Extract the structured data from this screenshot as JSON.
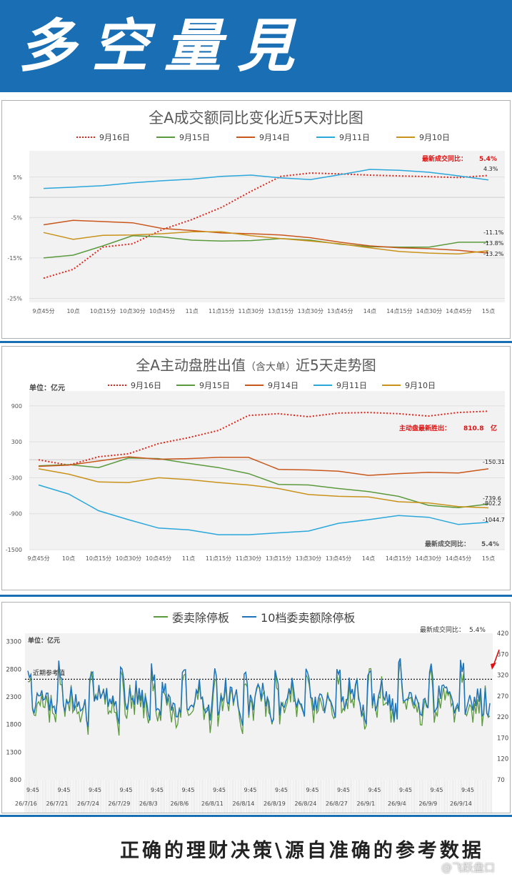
{
  "banner": {
    "title": "多空量見"
  },
  "footer": {
    "slogan": "正确的理财决策\\源自准确的参考数据",
    "watermark": "@飞跃盘口"
  },
  "colors": {
    "c916": "#e0261b",
    "c915": "#5b9a3c",
    "c914": "#c9561b",
    "c911": "#2aa7db",
    "c910": "#c9921b",
    "banner": "#1a6fb4"
  },
  "chart_data": [
    {
      "type": "line",
      "title": "全A成交额同比变化近5天对比图",
      "categories": [
        "9点45分",
        "10点",
        "10点15分",
        "10点30分",
        "10点45分",
        "11点",
        "11点15分",
        "11点30分",
        "13点15分",
        "13点30分",
        "13点45分",
        "14点",
        "14点15分",
        "14点30分",
        "14点45分",
        "15点"
      ],
      "yticks": [
        "5%",
        "-5%",
        "-15%",
        "-25%"
      ],
      "ylim": [
        -25,
        10
      ],
      "series": [
        {
          "name": "9月16日",
          "style": "dotted",
          "color": "#e0261b",
          "values": [
            -20,
            -17.8,
            -12.3,
            -11.5,
            -8,
            -5.5,
            -2.5,
            1.5,
            5.2,
            6,
            5.8,
            5.5,
            5.3,
            5.1,
            4.9,
            5.4
          ]
        },
        {
          "name": "9月15日",
          "color": "#5b9a3c",
          "values": [
            -15,
            -14.3,
            -12,
            -9.5,
            -9.8,
            -10.6,
            -10.8,
            -10.7,
            -10.2,
            -10.6,
            -11.6,
            -12.2,
            -12.3,
            -12.3,
            -11.1,
            -11.1
          ]
        },
        {
          "name": "9月14日",
          "color": "#c9561b",
          "values": [
            -6.8,
            -5.7,
            -6,
            -6.3,
            -7.7,
            -8.2,
            -8.8,
            -9,
            -9.3,
            -10,
            -11.1,
            -12,
            -12.5,
            -12.7,
            -13.1,
            -13.8
          ]
        },
        {
          "name": "9月11日",
          "color": "#2aa7db",
          "values": [
            2.2,
            2.5,
            2.9,
            3.6,
            4.1,
            4.5,
            5.2,
            5.5,
            4.8,
            4.4,
            5.6,
            6.9,
            6.7,
            6.2,
            5.3,
            4.3
          ]
        },
        {
          "name": "9月10日",
          "color": "#c9921b",
          "values": [
            -8.7,
            -10.4,
            -9.4,
            -9.3,
            -9,
            -8.5,
            -8.5,
            -9.5,
            -10.2,
            -10.8,
            -11.5,
            -12.5,
            -13.4,
            -13.8,
            -14,
            -13.2
          ]
        }
      ],
      "end_labels": [
        "4.3%",
        "-11.1%",
        "-13.8%",
        "-13.2%"
      ],
      "annotation": {
        "label": "最新成交同比：",
        "value": "5.4%"
      }
    },
    {
      "type": "line",
      "title": "全A主动盘胜出值",
      "title_note": "（含大单）",
      "title_tail": "近5天走势图",
      "unit": "单位：亿元",
      "categories": [
        "9点45分",
        "10点",
        "10点15分",
        "10点30分",
        "10点45分",
        "11点",
        "11点15分",
        "11点30分",
        "13点15分",
        "13点30分",
        "13点45分",
        "14点",
        "14点15分",
        "14点30分",
        "14点45分",
        "15点"
      ],
      "yticks": [
        "900",
        "300",
        "-300",
        "-900",
        "-1500"
      ],
      "ylim": [
        -1500,
        1000
      ],
      "series": [
        {
          "name": "9月16日",
          "style": "dotted",
          "color": "#e0261b",
          "values": [
            0,
            -90,
            50,
            100,
            270,
            370,
            490,
            740,
            770,
            720,
            780,
            790,
            770,
            730,
            790,
            811
          ]
        },
        {
          "name": "9月15日",
          "color": "#5b9a3c",
          "values": [
            -100,
            -80,
            -130,
            30,
            20,
            -60,
            -130,
            -230,
            -410,
            -420,
            -480,
            -530,
            -610,
            -760,
            -800,
            -739.6
          ]
        },
        {
          "name": "9月14日",
          "color": "#c9561b",
          "values": [
            -110,
            -90,
            -20,
            50,
            10,
            20,
            40,
            40,
            -160,
            -170,
            -190,
            -260,
            -230,
            -210,
            -220,
            -150.31
          ]
        },
        {
          "name": "9月11日",
          "color": "#2aa7db",
          "values": [
            -420,
            -570,
            -850,
            -1000,
            -1140,
            -1170,
            -1250,
            -1250,
            -1220,
            -1190,
            -1060,
            -1000,
            -930,
            -960,
            -1080,
            -1044.7
          ]
        },
        {
          "name": "9月10日",
          "color": "#c9921b",
          "values": [
            -150,
            -240,
            -370,
            -380,
            -300,
            -330,
            -380,
            -420,
            -480,
            -580,
            -610,
            -620,
            -700,
            -720,
            -780,
            -802.2
          ]
        }
      ],
      "end_labels": [
        "-150.31",
        "-739.6",
        "-802.2",
        "-1044.7"
      ],
      "annotation": {
        "label": "主动盘最新胜出：",
        "value": "810.8",
        "unit": "亿"
      },
      "footnote": {
        "label": "最新成交同比：",
        "value": "5.4%"
      }
    },
    {
      "type": "line",
      "unit": "单位：亿元",
      "yticks_left": [
        "3300",
        "2800",
        "2300",
        "1800",
        "1300",
        "800"
      ],
      "yticks_right": [
        "420",
        "370",
        "320",
        "270",
        "220",
        "170",
        "120",
        "70"
      ],
      "ylim_left": [
        800,
        3400
      ],
      "ylim_right": [
        70,
        420
      ],
      "reference_line": {
        "label": "近期参考值",
        "value": 2620
      },
      "top_note": {
        "label": "最新成交同比：",
        "value": "5.4%"
      },
      "time_label": "9:45",
      "dates": [
        "26/7/16",
        "26/7/21",
        "26/7/24",
        "26/7/29",
        "26/8/3",
        "26/8/6",
        "26/8/11",
        "26/8/14",
        "26/8/19",
        "26/8/24",
        "26/8/27",
        "26/9/1",
        "26/9/4",
        "26/9/9",
        "26/9/14"
      ],
      "series": [
        {
          "name": "委卖除停板",
          "color": "#5b9a3c",
          "axis": "left"
        },
        {
          "name": "10档委卖额除停板",
          "color": "#1f73b8",
          "axis": "right"
        }
      ]
    }
  ]
}
